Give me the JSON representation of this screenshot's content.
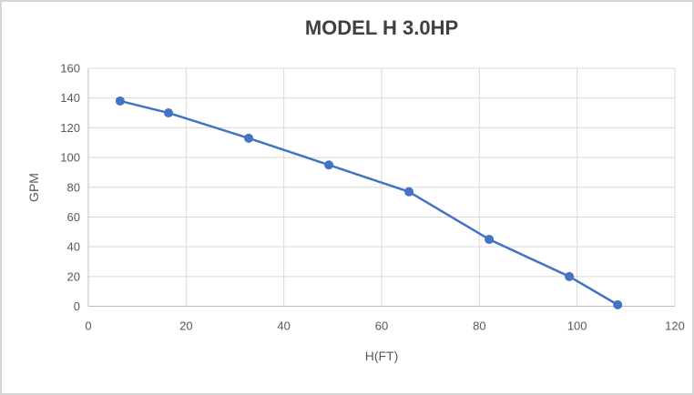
{
  "chart_data": {
    "type": "line",
    "title": "MODEL H 3.0HP",
    "xlabel": "H(FT)",
    "ylabel": "GPM",
    "x": [
      6.5,
      16.4,
      32.8,
      49.2,
      65.6,
      82,
      98.4,
      108.3
    ],
    "y": [
      138,
      130,
      113,
      95,
      77,
      45,
      20,
      1
    ],
    "xlim": [
      0,
      120
    ],
    "ylim": [
      0,
      160
    ],
    "xticks": [
      0,
      20,
      40,
      60,
      80,
      100,
      120
    ],
    "yticks": [
      0,
      20,
      40,
      60,
      80,
      100,
      120,
      140,
      160
    ],
    "grid": true,
    "legend": false,
    "colors": {
      "line": "#4472C4",
      "marker": "#4472C4",
      "grid": "#D9D9D9",
      "axis": "#BFBFBF",
      "tick_text": "#595959",
      "title_text": "#404040",
      "axis_title_text": "#595959",
      "background": "#FFFFFF",
      "border": "#D6D6D6"
    }
  }
}
